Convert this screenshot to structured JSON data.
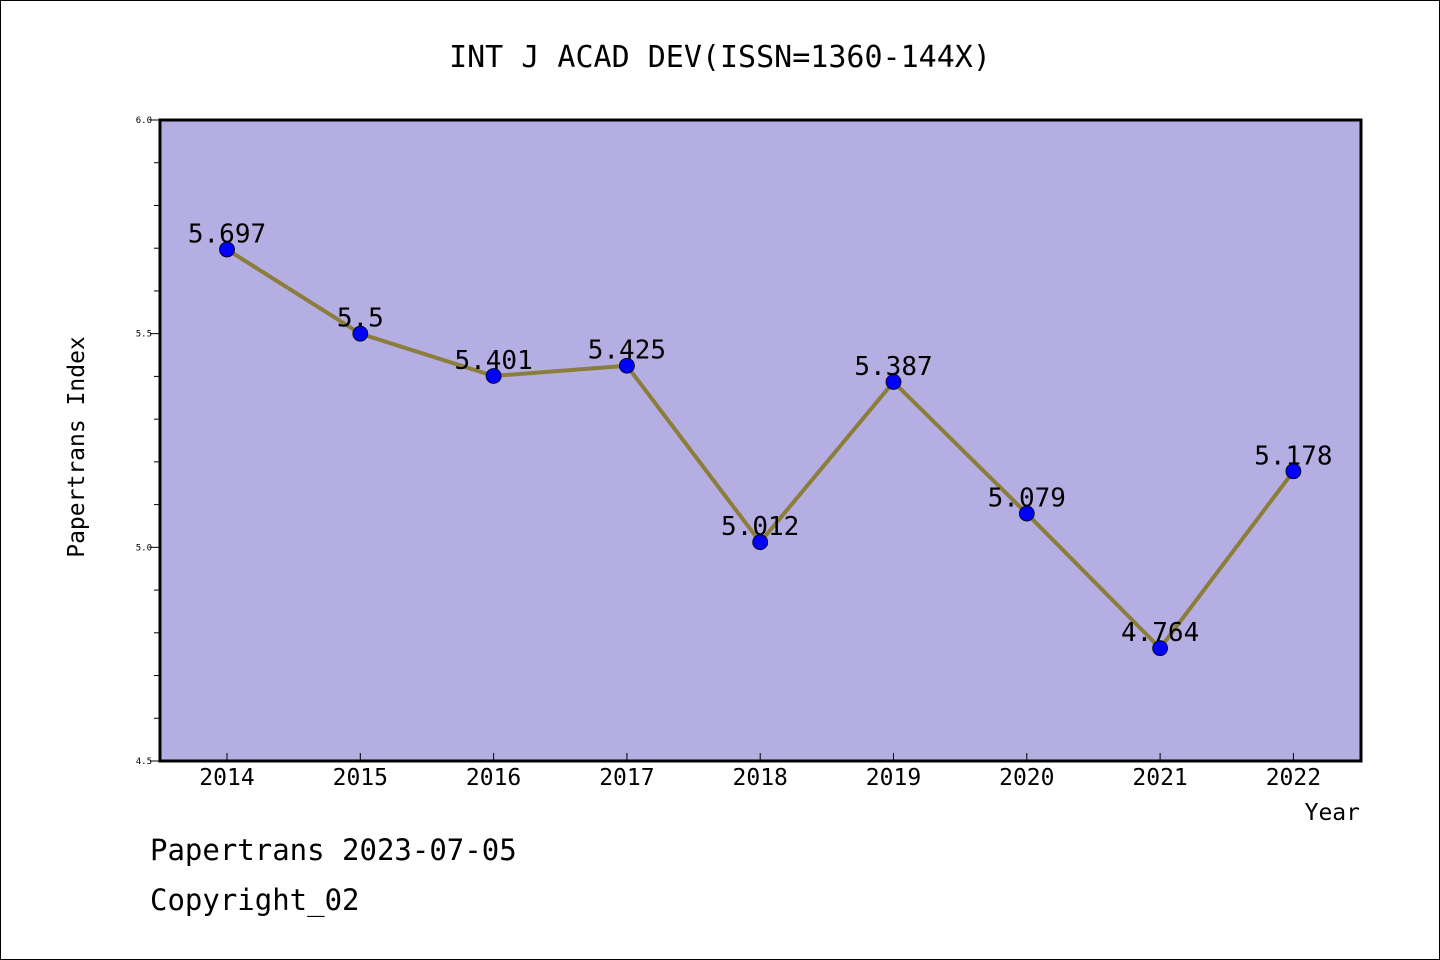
{
  "chart_data": {
    "type": "line",
    "title": "INT J ACAD DEV(ISSN=1360-144X)",
    "xlabel": "Year",
    "ylabel": "Papertrans Index",
    "categories": [
      "2014",
      "2015",
      "2016",
      "2017",
      "2018",
      "2019",
      "2020",
      "2021",
      "2022"
    ],
    "series": [
      {
        "values": [
          5.697,
          5.5,
          5.401,
          5.425,
          5.012,
          5.387,
          5.079,
          4.764,
          5.178
        ],
        "labels": [
          "5.697",
          "5.5",
          "5.401",
          "5.425",
          "5.012",
          "5.387",
          "5.079",
          "4.764",
          "5.178"
        ]
      }
    ],
    "ylim": [
      4.5,
      6.0
    ],
    "yticks": [
      "4.5",
      "5.0",
      "5.5",
      "6.0"
    ],
    "grid": false,
    "colors": {
      "plot_background": "#b5aee2",
      "line": "#8b7d3a",
      "marker": "#0000ff"
    }
  },
  "footer": {
    "line1": "Papertrans 2023-07-05",
    "line2": "Copyright_02"
  }
}
